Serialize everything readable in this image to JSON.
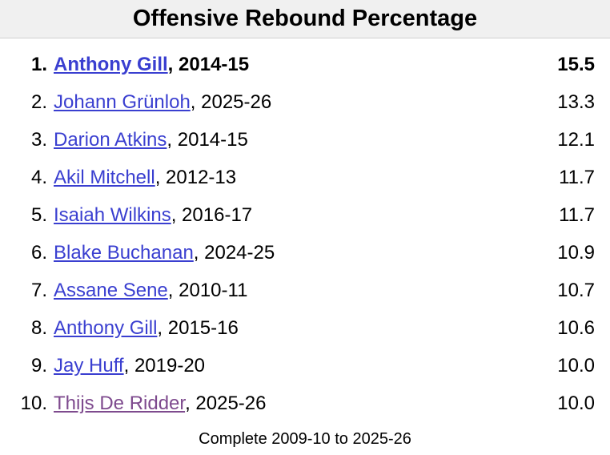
{
  "header": {
    "title": "Offensive Rebound Percentage"
  },
  "table": {
    "rows": [
      {
        "rank": "1.",
        "player": "Anthony Gill",
        "season": ", 2014-15",
        "value": "15.5"
      },
      {
        "rank": "2.",
        "player": "Johann Grünloh",
        "season": ", 2025-26",
        "value": "13.3"
      },
      {
        "rank": "3.",
        "player": "Darion Atkins",
        "season": ", 2014-15",
        "value": "12.1"
      },
      {
        "rank": "4.",
        "player": "Akil Mitchell",
        "season": ", 2012-13",
        "value": "11.7"
      },
      {
        "rank": "5.",
        "player": "Isaiah Wilkins",
        "season": ", 2016-17",
        "value": "11.7"
      },
      {
        "rank": "6.",
        "player": "Blake Buchanan",
        "season": ", 2024-25",
        "value": "10.9"
      },
      {
        "rank": "7.",
        "player": "Assane Sene",
        "season": ", 2010-11",
        "value": "10.7"
      },
      {
        "rank": "8.",
        "player": "Anthony Gill",
        "season": ", 2015-16",
        "value": "10.6"
      },
      {
        "rank": "9.",
        "player": "Jay Huff",
        "season": ", 2019-20",
        "value": "10.0"
      },
      {
        "rank": "10.",
        "player": "Thijs De Ridder",
        "season": ", 2025-26",
        "value": "10.0"
      }
    ]
  },
  "footer": {
    "text": "Complete 2009-10 to 2025-26"
  }
}
